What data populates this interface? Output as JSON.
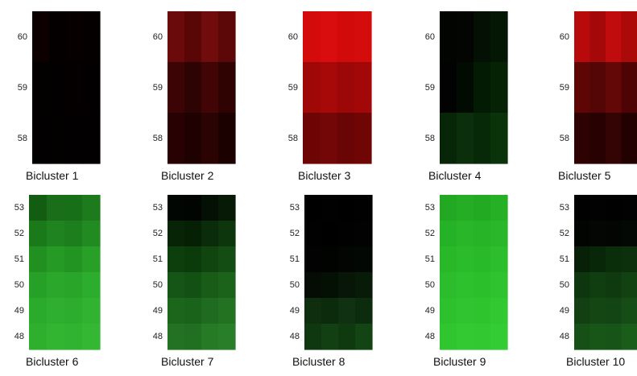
{
  "chart_data": [
    {
      "type": "heatmap",
      "title": "Bicluster 1",
      "rows": [
        "60",
        "59",
        "58"
      ],
      "colors": [
        [
          "#0c0000",
          "#050000",
          "#070000",
          "#040000"
        ],
        [
          "#030000",
          "#020000",
          "#040000",
          "#020000"
        ],
        [
          "#020000",
          "#030000",
          "#020000",
          "#020000"
        ]
      ]
    },
    {
      "type": "heatmap",
      "title": "Bicluster 2",
      "rows": [
        "60",
        "59",
        "58"
      ],
      "colors": [
        [
          "#6a0a0a",
          "#5a0606",
          "#700c0c",
          "#5c0808"
        ],
        [
          "#3c0404",
          "#2e0303",
          "#420505",
          "#300303"
        ],
        [
          "#280202",
          "#200101",
          "#2c0303",
          "#1c0101"
        ]
      ]
    },
    {
      "type": "heatmap",
      "title": "Bicluster 3",
      "rows": [
        "60",
        "59",
        "58"
      ],
      "colors": [
        [
          "#d40b0b",
          "#d90d0d",
          "#d20a0a",
          "#d50c0c"
        ],
        [
          "#a00808",
          "#a70909",
          "#9c0707",
          "#a30808"
        ],
        [
          "#6d0505",
          "#730606",
          "#6a0505",
          "#6f0505"
        ]
      ]
    },
    {
      "type": "heatmap",
      "title": "Bicluster 4",
      "rows": [
        "60",
        "59",
        "58"
      ],
      "colors": [
        [
          "#020402",
          "#020502",
          "#031003",
          "#041604"
        ],
        [
          "#010201",
          "#020b02",
          "#031a03",
          "#052205"
        ],
        [
          "#072607",
          "#0a2f0a",
          "#082908",
          "#0a330a"
        ]
      ]
    },
    {
      "type": "heatmap",
      "title": "Bicluster 5",
      "rows": [
        "60",
        "59",
        "58"
      ],
      "colors": [
        [
          "#b80a0a",
          "#a50808",
          "#c00c0c",
          "#ac0909"
        ],
        [
          "#5e0606",
          "#540505",
          "#640707",
          "#4e0404"
        ],
        [
          "#2e0202",
          "#280202",
          "#340303",
          "#240101"
        ]
      ]
    },
    {
      "type": "heatmap",
      "title": "Bicluster 6",
      "rows": [
        "53",
        "52",
        "51",
        "50",
        "49",
        "48"
      ],
      "colors": [
        [
          "#135d13",
          "#1a6e1a",
          "#177017",
          "#1d7a1d"
        ],
        [
          "#1a7a1a",
          "#1f831f",
          "#1c7e1c",
          "#218a21"
        ],
        [
          "#219021",
          "#259a25",
          "#229422",
          "#28a028"
        ],
        [
          "#27a027",
          "#2ba82b",
          "#29a529",
          "#2dad2d"
        ],
        [
          "#2bab2b",
          "#2faf2f",
          "#2dad2d",
          "#31b231"
        ],
        [
          "#2eb02e",
          "#32b632",
          "#30b330",
          "#34b834"
        ]
      ]
    },
    {
      "type": "heatmap",
      "title": "Bicluster 7",
      "rows": [
        "53",
        "52",
        "51",
        "50",
        "49",
        "48"
      ],
      "colors": [
        [
          "#020602",
          "#010401",
          "#041004",
          "#061a06"
        ],
        [
          "#072407",
          "#062006",
          "#0a2c0a",
          "#0d360d"
        ],
        [
          "#0d3f0d",
          "#0b3a0b",
          "#104510",
          "#134d13"
        ],
        [
          "#155515",
          "#135013",
          "#185c18",
          "#1b631b"
        ],
        [
          "#1c661c",
          "#1a631a",
          "#1f6b1f",
          "#227222"
        ],
        [
          "#237223",
          "#217021",
          "#267a26",
          "#297e29"
        ]
      ]
    },
    {
      "type": "heatmap",
      "title": "Bicluster 8",
      "rows": [
        "53",
        "52",
        "51",
        "50",
        "49",
        "48"
      ],
      "colors": [
        [
          "#000000",
          "#000100",
          "#000000",
          "#000100"
        ],
        [
          "#000100",
          "#000000",
          "#000100",
          "#010201"
        ],
        [
          "#010201",
          "#010301",
          "#020502",
          "#030703"
        ],
        [
          "#040c04",
          "#051005",
          "#071607",
          "#081a08"
        ],
        [
          "#0e2e0e",
          "#0c2a0c",
          "#103210",
          "#0d2c0d"
        ],
        [
          "#103810",
          "#124012",
          "#0f3a0f",
          "#134413"
        ]
      ]
    },
    {
      "type": "heatmap",
      "title": "Bicluster 9",
      "rows": [
        "53",
        "52",
        "51",
        "50",
        "49",
        "48"
      ],
      "colors": [
        [
          "#22a822",
          "#25ad25",
          "#23aa23",
          "#26b026"
        ],
        [
          "#26b226",
          "#29b629",
          "#27b427",
          "#2ab82a"
        ],
        [
          "#28b828",
          "#2bbc2b",
          "#29ba29",
          "#2cbe2c"
        ],
        [
          "#2bbd2b",
          "#2ec12e",
          "#2cbf2c",
          "#2fc42f"
        ],
        [
          "#2dc22d",
          "#30c530",
          "#2ec42e",
          "#31c831"
        ],
        [
          "#30c630",
          "#33c933",
          "#31c831",
          "#34cc34"
        ]
      ]
    },
    {
      "type": "heatmap",
      "title": "Bicluster 10",
      "rows": [
        "53",
        "52",
        "51",
        "50",
        "49",
        "48"
      ],
      "colors": [
        [
          "#000100",
          "#010201",
          "#000100",
          "#010201"
        ],
        [
          "#020402",
          "#030603",
          "#020502",
          "#040804"
        ],
        [
          "#072007",
          "#082608",
          "#0a2e0a",
          "#0b300b"
        ],
        [
          "#0e360e",
          "#103e10",
          "#0f3a0f",
          "#124212"
        ],
        [
          "#124012",
          "#144614",
          "#134413",
          "#164c16"
        ],
        [
          "#165016",
          "#185618",
          "#175417",
          "#1a5c1a"
        ]
      ]
    }
  ]
}
